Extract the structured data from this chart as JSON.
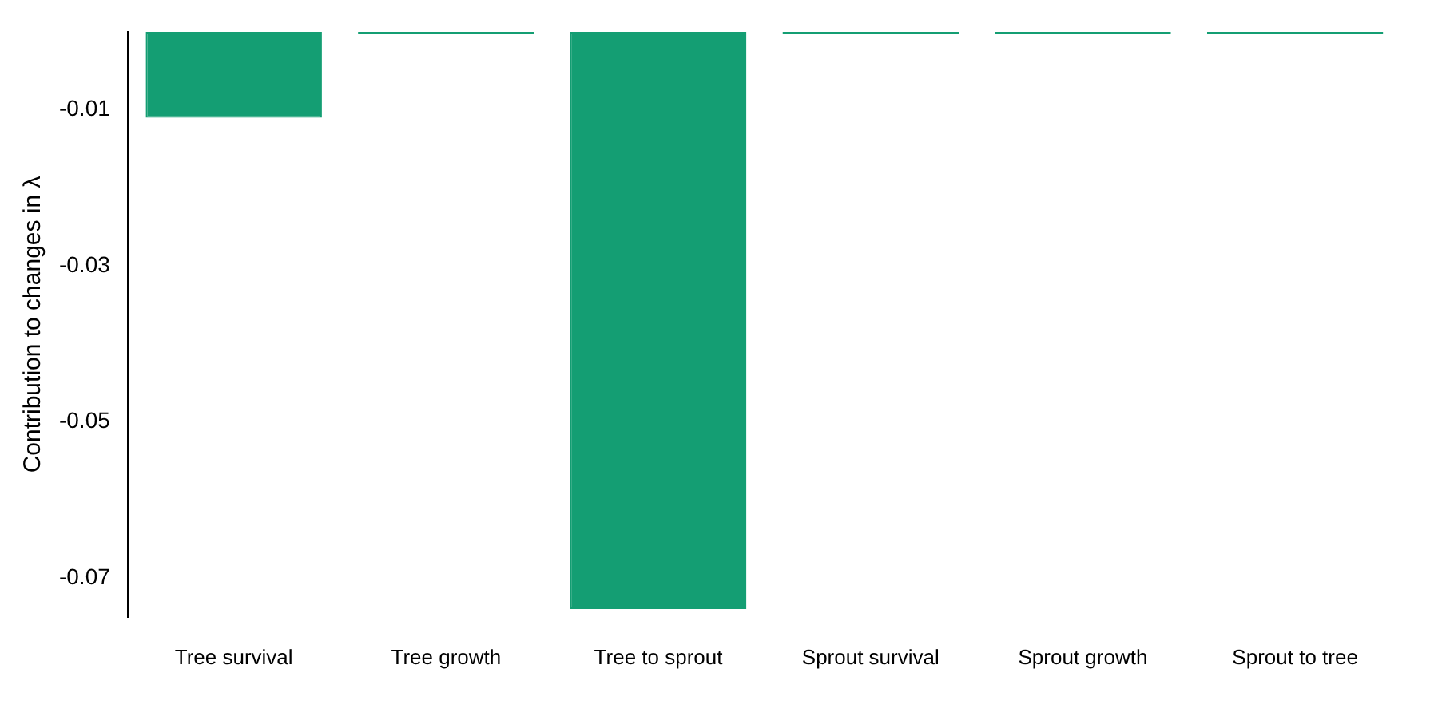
{
  "chart_data": {
    "type": "bar",
    "ylabel": "Contribution to changes in λ",
    "categories": [
      "Tree survival",
      "Tree growth",
      "Tree to sprout",
      "Sprout survival",
      "Sprout growth",
      "Sprout to tree"
    ],
    "values": [
      -0.011,
      0,
      -0.074,
      0,
      0,
      0
    ],
    "color": "#149e73",
    "ylim": [
      -0.075,
      0
    ],
    "yticks": [
      -0.01,
      -0.03,
      -0.05,
      -0.07
    ],
    "grid": false
  }
}
